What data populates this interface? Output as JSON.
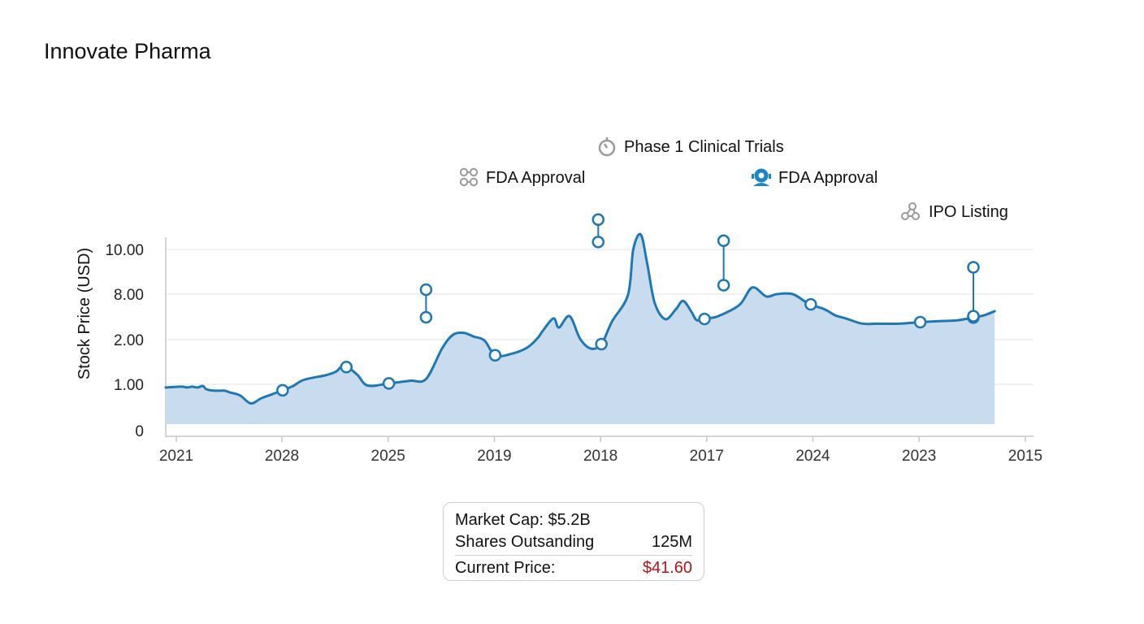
{
  "title": "Innovate Pharma",
  "chart_data": {
    "type": "area",
    "title": "Innovate Pharma",
    "xlabel": "",
    "ylabel": "Stock Price (USD)",
    "x_tick_labels": [
      "2021",
      "2028",
      "2025",
      "2019",
      "2018",
      "2017",
      "2024",
      "2023",
      "2015"
    ],
    "y_tick_labels": [
      "0",
      "1.00",
      "2.00",
      "8.00",
      "10.00"
    ],
    "grid": true,
    "line_color": "#1f77b4",
    "fill_color": "#c9dcef",
    "series": [
      {
        "name": "Stock Price",
        "points": [
          [
            0,
            0.92
          ],
          [
            0.05,
            0.94
          ],
          [
            0.1,
            0.92
          ],
          [
            0.15,
            0.94
          ],
          [
            0.2,
            0.92
          ],
          [
            0.25,
            0.96
          ],
          [
            0.28,
            0.88
          ],
          [
            0.35,
            0.84
          ],
          [
            0.45,
            0.84
          ],
          [
            0.5,
            0.8
          ],
          [
            0.6,
            0.72
          ],
          [
            0.7,
            0.52
          ],
          [
            0.8,
            0.65
          ],
          [
            0.9,
            0.75
          ],
          [
            1.0,
            0.85
          ],
          [
            1.1,
            0.96
          ],
          [
            1.2,
            1.1
          ],
          [
            1.4,
            1.2
          ],
          [
            1.5,
            1.28
          ],
          [
            1.58,
            1.42
          ],
          [
            1.7,
            1.22
          ],
          [
            1.8,
            0.97
          ],
          [
            2.0,
            1.02
          ],
          [
            2.2,
            1.08
          ],
          [
            2.35,
            1.12
          ],
          [
            2.5,
            1.8
          ],
          [
            2.6,
            2.6
          ],
          [
            2.7,
            2.9
          ],
          [
            2.8,
            2.4
          ],
          [
            2.9,
            1.98
          ],
          [
            3.0,
            1.65
          ],
          [
            3.15,
            1.68
          ],
          [
            3.3,
            1.82
          ],
          [
            3.4,
            2.2
          ],
          [
            3.45,
            3.2
          ],
          [
            3.55,
            4.8
          ],
          [
            3.6,
            3.6
          ],
          [
            3.7,
            5.1
          ],
          [
            3.8,
            2.1
          ],
          [
            3.9,
            1.8
          ],
          [
            4.0,
            1.9
          ],
          [
            4.1,
            4.4
          ],
          [
            4.25,
            7.9
          ],
          [
            4.3,
            10.0
          ],
          [
            4.37,
            10.6
          ],
          [
            4.43,
            9.4
          ],
          [
            4.5,
            6.9
          ],
          [
            4.6,
            4.7
          ],
          [
            4.7,
            6.0
          ],
          [
            4.77,
            7.1
          ],
          [
            4.85,
            5.6
          ],
          [
            4.9,
            4.55
          ],
          [
            5.0,
            4.8
          ],
          [
            5.1,
            5.1
          ],
          [
            5.3,
            6.6
          ],
          [
            5.42,
            8.3
          ],
          [
            5.55,
            7.7
          ],
          [
            5.65,
            8.0
          ],
          [
            5.8,
            8.0
          ],
          [
            5.95,
            6.75
          ],
          [
            6.1,
            6.0
          ],
          [
            6.2,
            5.2
          ],
          [
            6.3,
            4.8
          ],
          [
            6.45,
            4.12
          ],
          [
            6.6,
            4.1
          ],
          [
            6.8,
            4.1
          ],
          [
            7.0,
            4.3
          ],
          [
            7.2,
            4.45
          ],
          [
            7.35,
            4.55
          ],
          [
            7.5,
            4.9
          ],
          [
            7.6,
            5.2
          ],
          [
            7.7,
            5.75
          ]
        ]
      }
    ],
    "highlighted_points_x": [
      1.0,
      1.6,
      2.0,
      3.0,
      4.0,
      4.97,
      5.97,
      7.0,
      7.5
    ],
    "annotations": [
      {
        "label": "FDA Approval",
        "x": 2.35,
        "icon": "molecule-icon",
        "icon_color": "#9a9a9a",
        "pin_price": 8.2,
        "marker_price": 4.95
      },
      {
        "label": "Phase 1 Clinical Trials",
        "x": 3.97,
        "icon": "stopwatch-icon",
        "icon_color": "#9a9a9a",
        "pin_price": 11.2,
        "marker_price": 10.3
      },
      {
        "label": "FDA Approval",
        "x": 5.15,
        "icon": "robot-icon",
        "icon_color": "#1a86c7",
        "pin_price": 10.35,
        "marker_price": 8.4
      },
      {
        "label": "IPO Listing",
        "x": 7.5,
        "icon": "network-icon",
        "icon_color": "#9a9a9a",
        "pin_price": 9.2,
        "marker_price": 5.1
      }
    ]
  },
  "info": {
    "market_cap": "Market Cap: $5.2B",
    "shares_label": "Shares Outsanding",
    "shares_value": "125M",
    "price_label": "Current Price:",
    "price_value": "$41.60"
  }
}
